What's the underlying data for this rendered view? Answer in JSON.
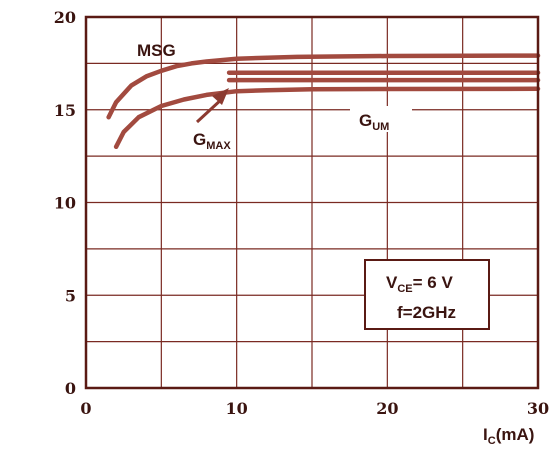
{
  "chart_data": {
    "type": "line",
    "xlabel": {
      "main": "I",
      "sub": "C",
      "unit": "(mA)"
    },
    "ylabel": "",
    "xlim": [
      0,
      30
    ],
    "ylim": [
      0,
      20
    ],
    "x_ticks": [
      0,
      10,
      20,
      30
    ],
    "y_ticks": [
      0,
      5,
      10,
      15,
      20
    ],
    "grid": true,
    "legend": "none",
    "colors": {
      "curve": "#a24a3f",
      "frame": "#5a1a14",
      "text": "#3a1410"
    },
    "series": [
      {
        "name": "MSG",
        "label_main": "MSG",
        "label_sub": "",
        "x": [
          1.5,
          2,
          3,
          4,
          5,
          6,
          7,
          8,
          10,
          14,
          20,
          30
        ],
        "y": [
          14.6,
          15.4,
          16.3,
          16.8,
          17.1,
          17.35,
          17.5,
          17.6,
          17.75,
          17.85,
          17.9,
          17.92
        ]
      },
      {
        "name": "GMAX",
        "label_main": "G",
        "label_sub": "MAX",
        "x": [
          9.5,
          12,
          15,
          20,
          25,
          30
        ],
        "y": [
          17.0,
          17.0,
          17.0,
          17.0,
          17.0,
          17.0
        ]
      },
      {
        "name": "GUM_upper",
        "x": [
          9.5,
          12,
          15,
          20,
          25,
          30
        ],
        "y": [
          16.6,
          16.6,
          16.6,
          16.6,
          16.6,
          16.6
        ]
      },
      {
        "name": "GUM",
        "label_main": "G",
        "label_sub": "UM",
        "x": [
          2,
          2.5,
          3.5,
          5,
          6.5,
          8,
          10,
          12,
          15,
          20,
          30
        ],
        "y": [
          13.0,
          13.8,
          14.6,
          15.2,
          15.55,
          15.8,
          16.0,
          16.05,
          16.1,
          16.12,
          16.13
        ]
      }
    ],
    "annotations": {
      "condition_vce": {
        "main": "V",
        "sub": "CE",
        "rest": "= 6  V"
      },
      "condition_freq": "f=2GHz"
    }
  }
}
